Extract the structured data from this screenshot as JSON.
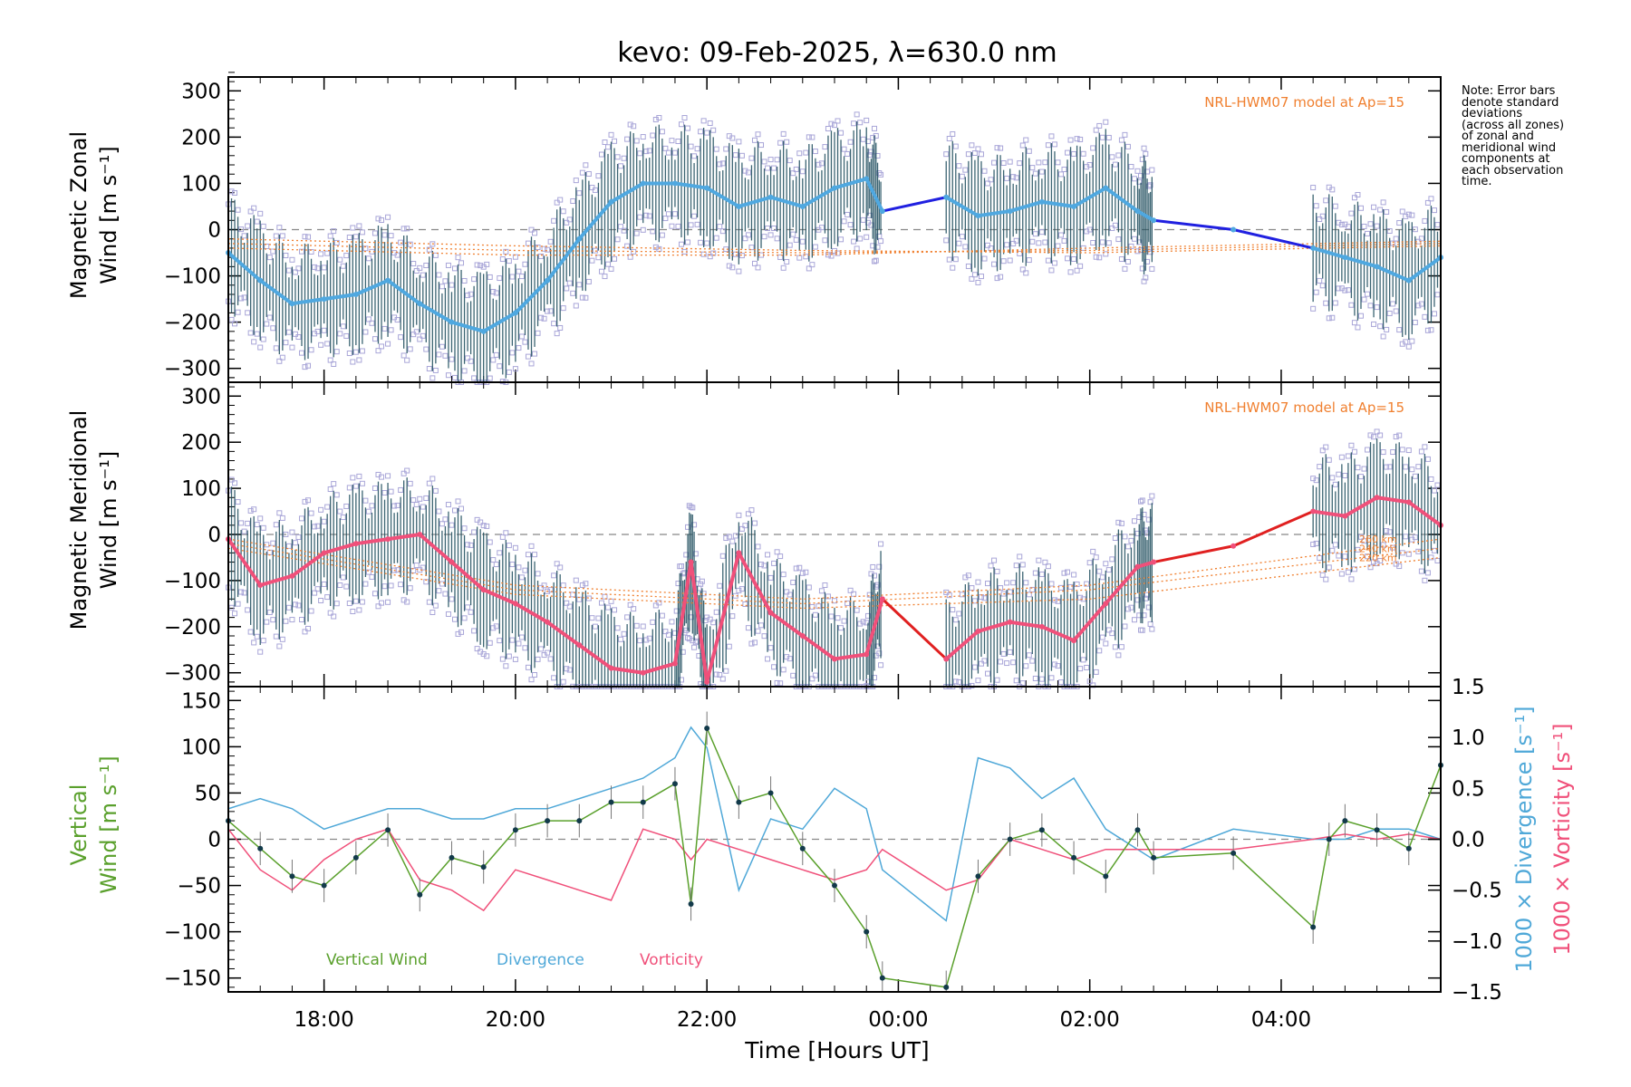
{
  "chart_data": {
    "title": "kevo: 09-Feb-2025, λ=630.0 nm",
    "xlabel": "Time [Hours UT]",
    "x_range": [
      "17:00",
      "05:40"
    ],
    "x_ticks": [
      "18:00",
      "20:00",
      "22:00",
      "00:00",
      "02:00",
      "04:00"
    ],
    "note": [
      "Note: Error bars",
      "denote standard",
      "deviations",
      "(across all zones)",
      "of zonal and",
      "meridional wind",
      "components at",
      "each observation",
      "time."
    ],
    "panels": [
      {
        "type": "line",
        "ylabel": "Magnetic Zonal Wind [m s⁻¹]",
        "ylabel_lines": [
          "Magnetic Zonal",
          "Wind [m s⁻¹]"
        ],
        "ylim": [
          -330,
          330
        ],
        "yticks": [
          -300,
          -200,
          -100,
          0,
          100,
          200,
          300
        ],
        "model_label": "NRL-HWM07 model at Ap=15",
        "colors": {
          "mean": "#4fa8e0",
          "gap": "#2020e0",
          "err": "#1a4a5a",
          "scatter": "#a9a6d8",
          "model": "#f08030"
        },
        "series": [
          {
            "x": [
              "17:00",
              "17:20",
              "17:40",
              "18:00",
              "18:20",
              "18:40",
              "19:00",
              "19:20",
              "19:40",
              "20:00",
              "20:20",
              "20:40",
              "21:00",
              "21:20",
              "21:40",
              "22:00",
              "22:20",
              "22:40",
              "23:00",
              "23:20",
              "23:40",
              "23:50",
              "00:30",
              "00:50",
              "01:10",
              "01:30",
              "01:50",
              "02:10",
              "02:30",
              "02:40",
              "03:30",
              "04:20",
              "04:40",
              "05:00",
              "05:20",
              "05:40"
            ],
            "values": [
              -50,
              -110,
              -160,
              -150,
              -140,
              -110,
              -160,
              -200,
              -220,
              -180,
              -110,
              -20,
              60,
              100,
              100,
              90,
              50,
              70,
              50,
              90,
              110,
              40,
              70,
              30,
              40,
              60,
              50,
              90,
              40,
              20,
              0,
              -40,
              -60,
              -80,
              -110,
              -60
            ]
          }
        ],
        "models": [
          {
            "label": "",
            "x": [
              "17:00",
              "20:00",
              "23:00",
              "02:00",
              "05:40"
            ],
            "values": [
              -30,
              -45,
              -50,
              -45,
              -30
            ]
          },
          {
            "label": "",
            "x": [
              "17:00",
              "20:00",
              "23:00",
              "02:00",
              "05:40"
            ],
            "values": [
              -40,
              -55,
              -55,
              -40,
              -25
            ]
          },
          {
            "label": "",
            "x": [
              "17:00",
              "20:00",
              "23:00",
              "02:00",
              "05:40"
            ],
            "values": [
              -20,
              -35,
              -45,
              -50,
              -35
            ]
          }
        ]
      },
      {
        "type": "line",
        "ylabel": "Magnetic Meridional Wind [m s⁻¹]",
        "ylabel_lines": [
          "Magnetic Meridional",
          "Wind [m s⁻¹]"
        ],
        "ylim": [
          -330,
          330
        ],
        "yticks": [
          -300,
          -200,
          -100,
          0,
          100,
          200,
          300
        ],
        "model_label": "NRL-HWM07 model at Ap=15",
        "colors": {
          "mean": "#f0507a",
          "gap": "#e02020",
          "err": "#1a4a5a",
          "scatter": "#a9a6d8",
          "model": "#f08030"
        },
        "series": [
          {
            "x": [
              "17:00",
              "17:20",
              "17:40",
              "18:00",
              "18:20",
              "18:40",
              "19:00",
              "19:20",
              "19:40",
              "20:00",
              "20:20",
              "20:40",
              "21:00",
              "21:20",
              "21:40",
              "21:50",
              "22:00",
              "22:20",
              "22:40",
              "23:00",
              "23:20",
              "23:40",
              "23:50",
              "00:30",
              "00:50",
              "01:10",
              "01:30",
              "01:50",
              "02:10",
              "02:30",
              "02:40",
              "03:30",
              "04:20",
              "04:40",
              "05:00",
              "05:20",
              "05:40"
            ],
            "values": [
              -10,
              -110,
              -90,
              -40,
              -20,
              -10,
              0,
              -60,
              -120,
              -150,
              -190,
              -240,
              -290,
              -300,
              -280,
              -60,
              -320,
              -40,
              -170,
              -220,
              -270,
              -260,
              -140,
              -270,
              -210,
              -190,
              -200,
              -230,
              -150,
              -70,
              -60,
              -25,
              50,
              40,
              80,
              70,
              20
            ]
          }
        ],
        "models": [
          {
            "label": "260 km",
            "x": [
              "17:00",
              "20:00",
              "23:00",
              "02:00",
              "05:40"
            ],
            "values": [
              -10,
              -110,
              -140,
              -110,
              -10
            ]
          },
          {
            "label": "240 km",
            "x": [
              "17:00",
              "20:00",
              "23:00",
              "02:00",
              "05:40"
            ],
            "values": [
              -20,
              -120,
              -150,
              -120,
              -30
            ]
          },
          {
            "label": "220 km",
            "x": [
              "17:00",
              "20:00",
              "23:00",
              "02:00",
              "05:40"
            ],
            "values": [
              -30,
              -130,
              -160,
              -140,
              -50
            ]
          }
        ]
      },
      {
        "type": "line",
        "ylabel": "Vertical Wind [m s⁻¹]",
        "ylabel_lines": [
          "Vertical",
          "Wind [m s⁻¹]"
        ],
        "ylim": [
          -165,
          165
        ],
        "yticks": [
          -150,
          -100,
          -50,
          0,
          50,
          100,
          150
        ],
        "y2label_div": "1000 × Divergence [s⁻¹]",
        "y2label_vort": "1000 × Vorticity [s⁻¹]",
        "y2lim": [
          -1.5,
          1.5
        ],
        "y2ticks": [
          -1.5,
          -1.0,
          -0.5,
          0.0,
          0.5,
          1.0,
          1.5
        ],
        "legend": [
          "Vertical Wind",
          "Divergence",
          "Vorticity"
        ],
        "colors": {
          "vertical": "#5aa02c",
          "divergence": "#4fa8d8",
          "vorticity": "#f0507a",
          "points": "#123a4a",
          "err": "#777777"
        },
        "series": [
          {
            "name": "Vertical Wind",
            "x": [
              "17:00",
              "17:20",
              "17:40",
              "18:00",
              "18:20",
              "18:40",
              "19:00",
              "19:20",
              "19:40",
              "20:00",
              "20:20",
              "20:40",
              "21:00",
              "21:20",
              "21:40",
              "21:50",
              "22:00",
              "22:20",
              "22:40",
              "23:00",
              "23:20",
              "23:40",
              "23:50",
              "00:30",
              "00:50",
              "01:10",
              "01:30",
              "01:50",
              "02:10",
              "02:30",
              "02:40",
              "03:30",
              "04:20",
              "04:30",
              "04:40",
              "05:00",
              "05:20",
              "05:40"
            ],
            "values": [
              20,
              -10,
              -40,
              -50,
              -20,
              10,
              -60,
              -20,
              -30,
              10,
              20,
              20,
              40,
              40,
              60,
              -70,
              120,
              40,
              50,
              -10,
              -50,
              -100,
              -150,
              -160,
              -40,
              0,
              10,
              -20,
              -40,
              10,
              -20,
              -15,
              -95,
              0,
              20,
              10,
              -10,
              80
            ]
          },
          {
            "name": "Divergence",
            "x": [
              "17:00",
              "17:20",
              "17:40",
              "18:00",
              "18:20",
              "18:40",
              "19:00",
              "19:20",
              "19:40",
              "20:00",
              "20:20",
              "20:40",
              "21:00",
              "21:20",
              "21:40",
              "21:50",
              "22:00",
              "22:20",
              "22:40",
              "23:00",
              "23:20",
              "23:40",
              "23:50",
              "00:30",
              "00:50",
              "01:10",
              "01:30",
              "01:50",
              "02:10",
              "02:30",
              "02:40",
              "03:30",
              "04:20",
              "04:40",
              "05:00",
              "05:20",
              "05:40"
            ],
            "values": [
              0.3,
              0.4,
              0.3,
              0.1,
              0.2,
              0.3,
              0.3,
              0.2,
              0.2,
              0.3,
              0.3,
              0.4,
              0.5,
              0.6,
              0.8,
              1.1,
              0.9,
              -0.5,
              0.2,
              0.1,
              0.5,
              0.3,
              -0.3,
              -0.8,
              0.8,
              0.7,
              0.4,
              0.6,
              0.1,
              -0.1,
              -0.2,
              0.1,
              0.0,
              0.0,
              0.1,
              0.1,
              0.0
            ]
          },
          {
            "name": "Vorticity",
            "x": [
              "17:00",
              "17:20",
              "17:40",
              "18:00",
              "18:20",
              "18:40",
              "19:00",
              "19:20",
              "19:40",
              "20:00",
              "20:20",
              "20:40",
              "21:00",
              "21:20",
              "21:40",
              "21:50",
              "22:00",
              "22:20",
              "22:40",
              "23:00",
              "23:20",
              "23:40",
              "23:50",
              "00:30",
              "00:50",
              "01:10",
              "01:30",
              "01:50",
              "02:10",
              "02:30",
              "02:40",
              "03:30",
              "04:20",
              "04:40",
              "05:00",
              "05:20",
              "05:40"
            ],
            "values": [
              0.1,
              -0.3,
              -0.5,
              -0.2,
              0.0,
              0.1,
              -0.4,
              -0.5,
              -0.7,
              -0.3,
              -0.4,
              -0.5,
              -0.6,
              0.1,
              0.0,
              -0.2,
              0.0,
              -0.1,
              -0.2,
              -0.3,
              -0.4,
              -0.3,
              -0.1,
              -0.5,
              -0.4,
              0.0,
              -0.1,
              -0.2,
              -0.1,
              -0.1,
              -0.1,
              -0.1,
              0.0,
              0.05,
              0.0,
              0.05,
              0.0
            ]
          }
        ]
      }
    ]
  }
}
